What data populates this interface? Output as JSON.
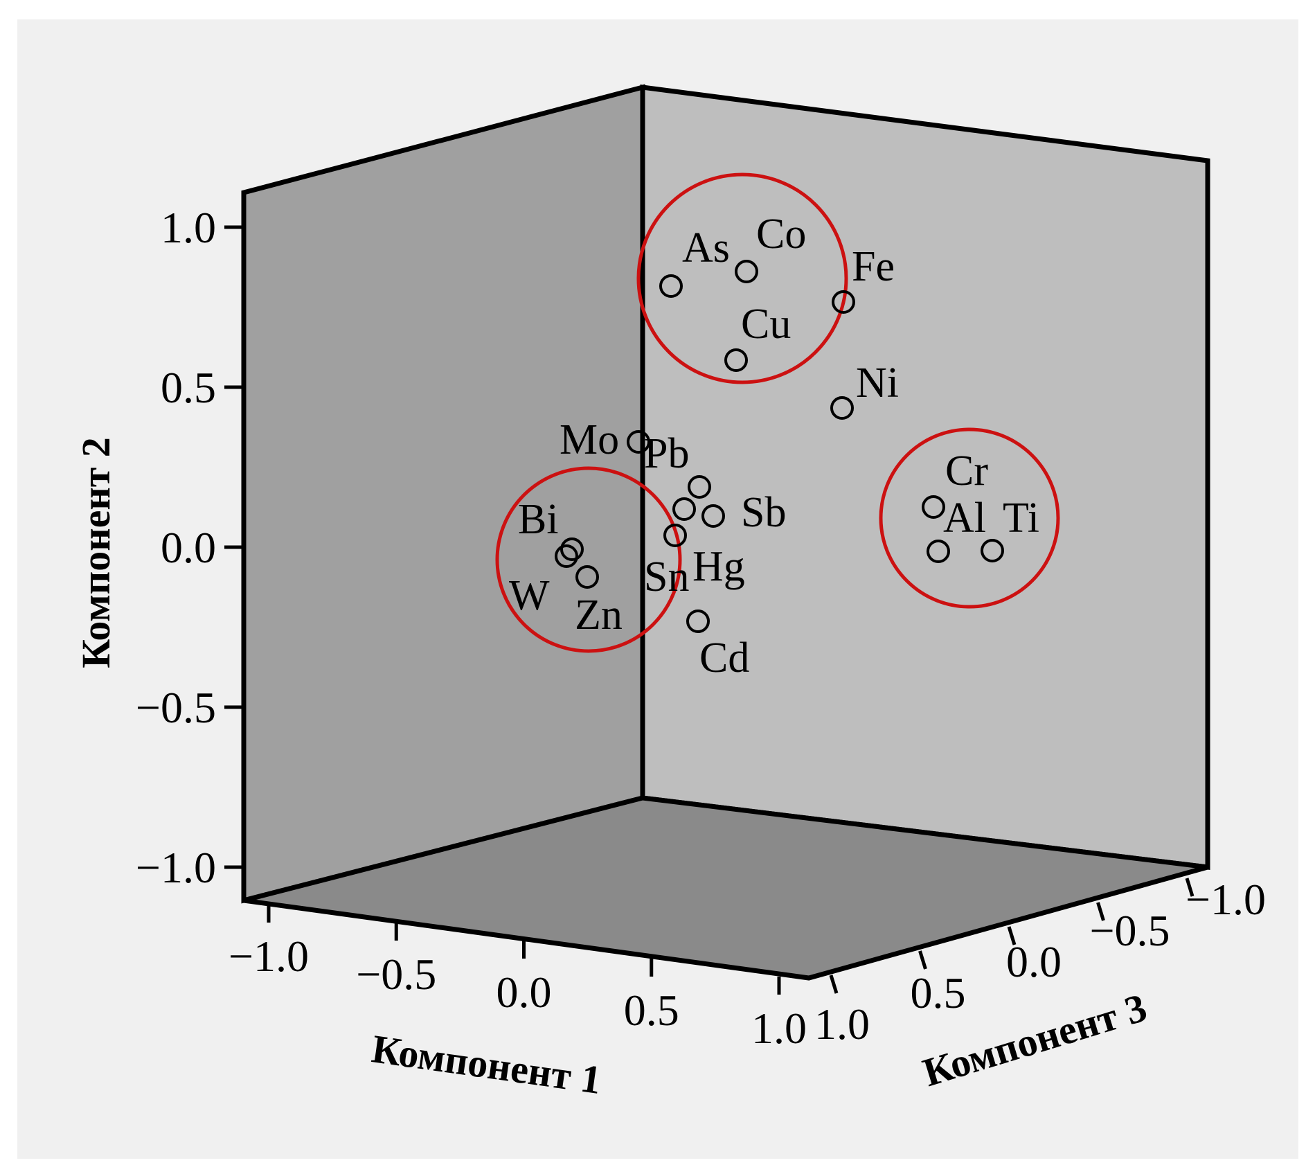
{
  "chart_data": {
    "type": "scatter",
    "title": "",
    "axes": {
      "x": {
        "label": "Компонент 1",
        "range": [
          -1.0,
          1.0
        ],
        "ticks": [
          -1.0,
          -0.5,
          0.0,
          0.5,
          1.0
        ],
        "tick_labels": [
          "−1.0",
          "−0.5",
          "0.0",
          "0.5",
          "1.0"
        ]
      },
      "y": {
        "label": "Компонент 2",
        "range": [
          -1.0,
          1.0
        ],
        "ticks": [
          -1.0,
          -0.5,
          0.0,
          0.5,
          1.0
        ],
        "tick_labels": [
          "−1.0",
          "−0.5",
          "0.0",
          "0.5",
          "1.0"
        ]
      },
      "z": {
        "label": "Компонент 3",
        "range": [
          -1.0,
          1.0
        ],
        "ticks": [
          1.0,
          0.5,
          0.0,
          -0.5,
          -1.0
        ],
        "tick_labels": [
          "1.0",
          "0.5",
          "0.0",
          "−0.5",
          "−1.0"
        ]
      }
    },
    "points": [
      {
        "label": "As",
        "y": 0.81
      },
      {
        "label": "Co",
        "y": 0.86
      },
      {
        "label": "Fe",
        "y": 0.76
      },
      {
        "label": "Cu",
        "y": 0.58
      },
      {
        "label": "Ni",
        "y": 0.43
      },
      {
        "label": "Mo",
        "y": 0.22
      },
      {
        "label": "Pb",
        "y": 0.18
      },
      {
        "label": "Sb",
        "y": 0.09
      },
      {
        "label": "Hg",
        "y": 0.04
      },
      {
        "label": "Sn",
        "y": 0.12
      },
      {
        "label": "Bi",
        "y": 0.0
      },
      {
        "label": "W",
        "y": -0.03
      },
      {
        "label": "Zn",
        "y": -0.09
      },
      {
        "label": "Cd",
        "y": -0.24
      },
      {
        "label": "Cr",
        "y": 0.12
      },
      {
        "label": "Al",
        "y": -0.02
      },
      {
        "label": "Ti",
        "y": -0.02
      }
    ],
    "clusters": [
      {
        "members": [
          "As",
          "Co",
          "Cu",
          "Fe"
        ],
        "color": "#cc1111"
      },
      {
        "members": [
          "Bi",
          "W",
          "Zn"
        ],
        "color": "#cc1111"
      },
      {
        "members": [
          "Cr",
          "Al",
          "Ti"
        ],
        "color": "#cc1111"
      }
    ],
    "colors": {
      "background": "#f0f0f0",
      "left_wall": "#a0a0a0",
      "back_wall": "#bebebe",
      "floor": "#8a8a8a",
      "cluster_ring": "#cc1111"
    }
  }
}
